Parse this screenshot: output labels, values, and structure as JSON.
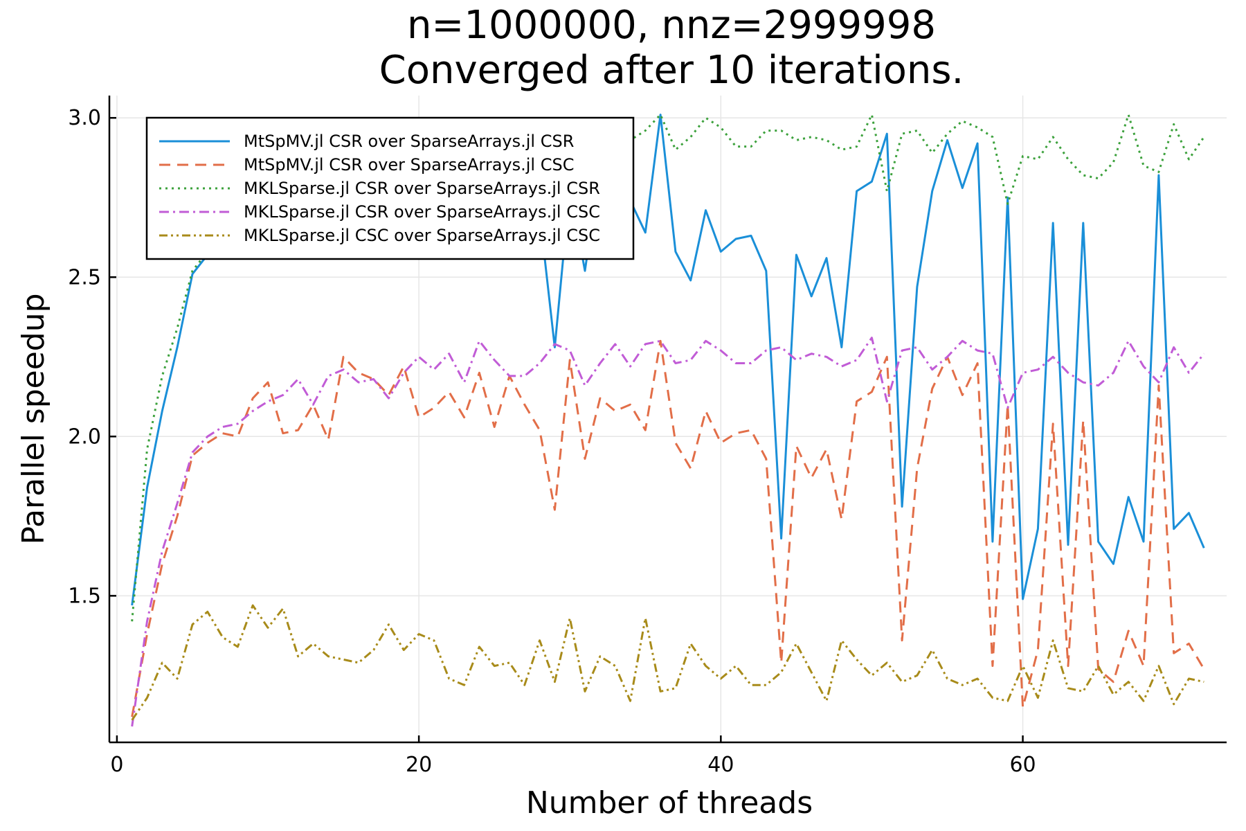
{
  "chart_data": {
    "type": "line",
    "title": [
      "n=1000000, nnz=2999998",
      "Converged after 10 iterations."
    ],
    "xlabel": "Number of threads",
    "ylabel": "Parallel speedup",
    "xlim": [
      -0.5,
      73.5
    ],
    "ylim": [
      1.04,
      3.07
    ],
    "xticks": [
      0,
      20,
      40,
      60
    ],
    "yticks": [
      1.5,
      2.0,
      2.5,
      3.0
    ],
    "ytick_labels": [
      "1.5",
      "2.0",
      "2.5",
      "3.0"
    ],
    "grid": true,
    "legend_position": "top-left",
    "x": [
      1,
      2,
      3,
      4,
      5,
      6,
      7,
      8,
      9,
      10,
      11,
      12,
      13,
      14,
      15,
      16,
      17,
      18,
      19,
      20,
      21,
      22,
      23,
      24,
      25,
      26,
      27,
      28,
      29,
      30,
      31,
      32,
      33,
      34,
      35,
      36,
      37,
      38,
      39,
      40,
      41,
      42,
      43,
      44,
      45,
      46,
      47,
      48,
      49,
      50,
      51,
      52,
      53,
      54,
      55,
      56,
      57,
      58,
      59,
      60,
      61,
      62,
      63,
      64,
      65,
      66,
      67,
      68,
      69,
      70,
      71,
      72
    ],
    "series": [
      {
        "name": "MtSpMV.jl CSR over SparseArrays.jl CSR",
        "color": "#1a8fd8",
        "dash": "",
        "values": [
          1.47,
          1.84,
          2.08,
          2.28,
          2.51,
          2.57,
          2.62,
          2.64,
          2.66,
          2.7,
          2.72,
          2.74,
          2.76,
          2.78,
          2.79,
          2.81,
          2.82,
          2.83,
          2.84,
          2.84,
          2.85,
          2.86,
          2.86,
          2.87,
          2.87,
          2.85,
          2.82,
          2.7,
          2.28,
          2.78,
          2.52,
          2.85,
          2.83,
          2.74,
          2.64,
          3.01,
          2.58,
          2.49,
          2.71,
          2.58,
          2.62,
          2.63,
          2.52,
          1.68,
          2.57,
          2.44,
          2.56,
          2.28,
          2.77,
          2.8,
          2.95,
          1.78,
          2.47,
          2.77,
          2.93,
          2.78,
          2.92,
          1.67,
          2.75,
          1.49,
          1.71,
          2.67,
          1.66,
          2.67,
          1.67,
          1.6,
          1.81,
          1.67,
          2.82,
          1.71,
          1.76,
          1.65
        ]
      },
      {
        "name": "MtSpMV.jl CSR over SparseArrays.jl CSC",
        "color": "#e26e48",
        "dash": "16,10",
        "values": [
          1.12,
          1.38,
          1.6,
          1.75,
          1.94,
          1.98,
          2.01,
          2.0,
          2.12,
          2.17,
          2.01,
          2.02,
          2.1,
          1.99,
          2.25,
          2.2,
          2.18,
          2.13,
          2.22,
          2.06,
          2.09,
          2.14,
          2.06,
          2.2,
          2.03,
          2.19,
          2.1,
          2.02,
          1.77,
          2.24,
          1.93,
          2.12,
          2.08,
          2.1,
          2.02,
          2.3,
          1.98,
          1.9,
          2.08,
          1.98,
          2.01,
          2.02,
          1.93,
          1.29,
          1.97,
          1.87,
          1.96,
          1.74,
          2.11,
          2.14,
          2.25,
          1.36,
          1.9,
          2.15,
          2.25,
          2.13,
          2.23,
          1.28,
          2.1,
          1.15,
          1.33,
          2.04,
          1.28,
          2.05,
          1.27,
          1.23,
          1.39,
          1.28,
          2.16,
          1.32,
          1.35,
          1.27
        ]
      },
      {
        "name": "MKLSparse.jl CSR over SparseArrays.jl CSR",
        "color": "#3ca13c",
        "dash": "3,6",
        "values": [
          1.42,
          1.96,
          2.19,
          2.34,
          2.52,
          2.58,
          2.64,
          2.68,
          2.71,
          2.73,
          2.75,
          2.77,
          2.78,
          2.8,
          2.81,
          2.82,
          2.83,
          2.84,
          2.85,
          2.85,
          2.86,
          2.87,
          2.87,
          2.88,
          2.88,
          2.89,
          2.89,
          2.9,
          2.9,
          2.91,
          2.91,
          2.92,
          2.92,
          2.93,
          2.96,
          3.01,
          2.9,
          2.94,
          3.0,
          2.97,
          2.91,
          2.91,
          2.96,
          2.96,
          2.93,
          2.94,
          2.93,
          2.9,
          2.91,
          3.01,
          2.77,
          2.95,
          2.96,
          2.89,
          2.95,
          2.99,
          2.97,
          2.94,
          2.73,
          2.88,
          2.87,
          2.94,
          2.87,
          2.82,
          2.81,
          2.86,
          3.01,
          2.85,
          2.83,
          2.98,
          2.87,
          2.94
        ]
      },
      {
        "name": "MKLSparse.jl CSR over SparseArrays.jl CSC",
        "color": "#c15cd6",
        "dash": "14,6,3,6",
        "values": [
          1.09,
          1.42,
          1.64,
          1.79,
          1.95,
          2.0,
          2.03,
          2.04,
          2.08,
          2.11,
          2.13,
          2.18,
          2.1,
          2.19,
          2.21,
          2.17,
          2.18,
          2.12,
          2.2,
          2.25,
          2.21,
          2.26,
          2.17,
          2.3,
          2.24,
          2.19,
          2.19,
          2.23,
          2.29,
          2.27,
          2.16,
          2.23,
          2.29,
          2.22,
          2.29,
          2.3,
          2.23,
          2.24,
          2.3,
          2.27,
          2.23,
          2.23,
          2.27,
          2.28,
          2.24,
          2.26,
          2.25,
          2.22,
          2.24,
          2.31,
          2.11,
          2.27,
          2.28,
          2.21,
          2.25,
          2.3,
          2.27,
          2.26,
          2.09,
          2.2,
          2.21,
          2.25,
          2.2,
          2.17,
          2.16,
          2.2,
          2.3,
          2.22,
          2.17,
          2.28,
          2.2,
          2.26
        ]
      },
      {
        "name": "MKLSparse.jl CSC over SparseArrays.jl CSC",
        "color": "#a88b1a",
        "dash": "12,5,3,5,3,5",
        "values": [
          1.11,
          1.18,
          1.29,
          1.24,
          1.41,
          1.45,
          1.37,
          1.34,
          1.47,
          1.4,
          1.46,
          1.31,
          1.35,
          1.31,
          1.3,
          1.29,
          1.33,
          1.41,
          1.33,
          1.38,
          1.36,
          1.24,
          1.22,
          1.34,
          1.28,
          1.29,
          1.22,
          1.36,
          1.23,
          1.43,
          1.2,
          1.31,
          1.28,
          1.17,
          1.43,
          1.2,
          1.21,
          1.35,
          1.28,
          1.24,
          1.28,
          1.22,
          1.22,
          1.26,
          1.35,
          1.26,
          1.17,
          1.36,
          1.3,
          1.25,
          1.29,
          1.23,
          1.25,
          1.33,
          1.24,
          1.22,
          1.24,
          1.18,
          1.17,
          1.28,
          1.18,
          1.36,
          1.21,
          1.2,
          1.28,
          1.19,
          1.23,
          1.17,
          1.28,
          1.16,
          1.24,
          1.23
        ]
      }
    ]
  }
}
